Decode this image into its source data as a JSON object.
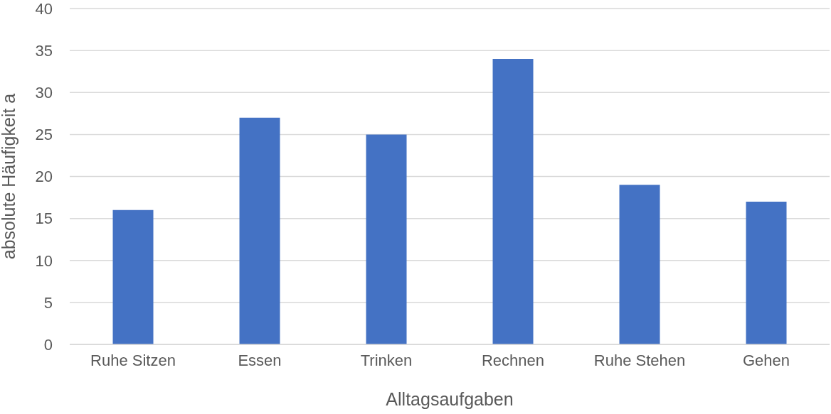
{
  "chart_data": {
    "type": "bar",
    "categories": [
      "Ruhe Sitzen",
      "Essen",
      "Trinken",
      "Rechnen",
      "Ruhe Stehen",
      "Gehen"
    ],
    "values": [
      16,
      27,
      25,
      34,
      19,
      17
    ],
    "color": "#4472c4",
    "xlabel": "Alltagsaufgaben",
    "ylabel": "absolute Häufigkeit a",
    "ylim": [
      0,
      40
    ],
    "yticks": [
      0,
      5,
      10,
      15,
      20,
      25,
      30,
      35,
      40
    ],
    "grid": "y"
  }
}
